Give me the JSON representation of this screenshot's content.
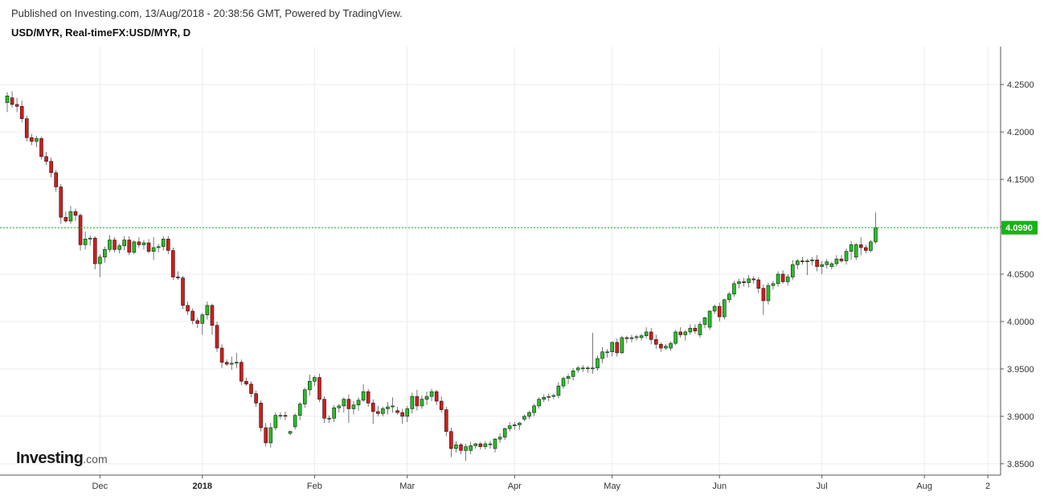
{
  "header": {
    "published": "Published on Investing.com, 13/Aug/2018 - 20:38:56 GMT, Powered by TradingView.",
    "symbol": "USD/MYR, Real-timeFX:USD/MYR, D"
  },
  "logo": {
    "main": "Investing",
    "sub": ".com"
  },
  "colors": {
    "up": "#22c322",
    "down": "#d71a1a",
    "last_line": "#19b219",
    "last_badge": "#19b219",
    "grid": "#ececec"
  },
  "chart_data": {
    "type": "candlestick",
    "symbol": "USD/MYR",
    "interval": "D",
    "ylim": [
      3.838,
      4.29
    ],
    "y_ticks": [
      "4.2500",
      "4.2000",
      "4.1500",
      "4.1000",
      "4.0500",
      "4.0000",
      "3.9500",
      "3.9000",
      "3.8500"
    ],
    "x_ticks": [
      {
        "label": "Dec",
        "index": 19,
        "bold": false
      },
      {
        "label": "2018",
        "index": 40,
        "bold": true
      },
      {
        "label": "Feb",
        "index": 63,
        "bold": false
      },
      {
        "label": "Mar",
        "index": 82,
        "bold": false
      },
      {
        "label": "Apr",
        "index": 104,
        "bold": false
      },
      {
        "label": "May",
        "index": 124,
        "bold": false
      },
      {
        "label": "Jun",
        "index": 146,
        "bold": false
      },
      {
        "label": "Jul",
        "index": 167,
        "bold": false
      },
      {
        "label": "Aug",
        "index": 188,
        "bold": false
      },
      {
        "label": "2",
        "index": 201,
        "bold": false
      }
    ],
    "last_price": "4.0990",
    "last_value": 4.099,
    "series": [
      [
        4.231,
        4.242,
        4.221,
        4.238
      ],
      [
        4.236,
        4.243,
        4.226,
        4.229
      ],
      [
        4.229,
        4.236,
        4.221,
        4.227
      ],
      [
        4.227,
        4.233,
        4.21,
        4.214
      ],
      [
        4.214,
        4.217,
        4.19,
        4.194
      ],
      [
        4.194,
        4.198,
        4.186,
        4.19
      ],
      [
        4.19,
        4.196,
        4.184,
        4.193
      ],
      [
        4.193,
        4.195,
        4.171,
        4.174
      ],
      [
        4.174,
        4.179,
        4.165,
        4.169
      ],
      [
        4.169,
        4.173,
        4.152,
        4.157
      ],
      [
        4.157,
        4.16,
        4.137,
        4.142
      ],
      [
        4.142,
        4.145,
        4.103,
        4.11
      ],
      [
        4.11,
        4.116,
        4.104,
        4.106
      ],
      [
        4.106,
        4.122,
        4.103,
        4.116
      ],
      [
        4.116,
        4.119,
        4.106,
        4.112
      ],
      [
        4.112,
        4.114,
        4.075,
        4.081
      ],
      [
        4.081,
        4.095,
        4.076,
        4.087
      ],
      [
        4.087,
        4.091,
        4.08,
        4.088
      ],
      [
        4.088,
        4.09,
        4.055,
        4.061
      ],
      [
        4.061,
        4.071,
        4.047,
        4.068
      ],
      [
        4.068,
        4.079,
        4.062,
        4.076
      ],
      [
        4.076,
        4.091,
        4.073,
        4.086
      ],
      [
        4.086,
        4.089,
        4.073,
        4.076
      ],
      [
        4.076,
        4.082,
        4.072,
        4.08
      ],
      [
        4.08,
        4.09,
        4.075,
        4.086
      ],
      [
        4.086,
        4.09,
        4.07,
        4.073
      ],
      [
        4.073,
        4.086,
        4.071,
        4.084
      ],
      [
        4.084,
        4.089,
        4.078,
        4.081
      ],
      [
        4.081,
        4.086,
        4.076,
        4.083
      ],
      [
        4.083,
        4.087,
        4.072,
        4.074
      ],
      [
        4.074,
        4.089,
        4.065,
        4.078
      ],
      [
        4.078,
        4.082,
        4.073,
        4.079
      ],
      [
        4.079,
        4.09,
        4.075,
        4.087
      ],
      [
        4.087,
        4.09,
        4.071,
        4.075
      ],
      [
        4.075,
        4.078,
        4.044,
        4.047
      ],
      [
        4.047,
        4.053,
        4.044,
        4.046
      ],
      [
        4.046,
        4.048,
        4.013,
        4.017
      ],
      [
        4.017,
        4.021,
        4.007,
        4.011
      ],
      [
        4.011,
        4.014,
        3.997,
        4.001
      ],
      [
        4.001,
        4.004,
        3.993,
        3.998
      ],
      [
        3.998,
        4.009,
        3.986,
        4.007
      ],
      [
        4.007,
        4.021,
        4.002,
        4.017
      ],
      [
        4.017,
        4.019,
        3.986,
        3.996
      ],
      [
        3.996,
        4.0,
        3.968,
        3.972
      ],
      [
        3.972,
        3.976,
        3.951,
        3.957
      ],
      [
        3.957,
        3.96,
        3.953,
        3.955
      ],
      [
        3.955,
        3.963,
        3.949,
        3.956
      ],
      [
        3.956,
        3.967,
        3.951,
        3.957
      ],
      [
        3.957,
        3.96,
        3.933,
        3.937
      ],
      [
        3.937,
        3.941,
        3.932,
        3.934
      ],
      [
        3.934,
        3.937,
        3.92,
        3.924
      ],
      [
        3.924,
        3.927,
        3.91,
        3.914
      ],
      [
        3.914,
        3.917,
        3.884,
        3.888
      ],
      [
        3.888,
        3.893,
        3.868,
        3.872
      ],
      [
        3.872,
        3.893,
        3.867,
        3.888
      ],
      [
        3.888,
        3.904,
        3.885,
        3.901
      ],
      [
        3.901,
        3.904,
        3.897,
        3.901
      ],
      [
        3.901,
        3.905,
        3.896,
        3.9
      ],
      [
        3.882,
        3.885,
        3.88,
        3.884
      ],
      [
        3.889,
        3.903,
        3.886,
        3.901
      ],
      [
        3.901,
        3.915,
        3.896,
        3.913
      ],
      [
        3.913,
        3.93,
        3.909,
        3.928
      ],
      [
        3.928,
        3.944,
        3.922,
        3.937
      ],
      [
        3.937,
        3.943,
        3.932,
        3.941
      ],
      [
        3.941,
        3.945,
        3.915,
        3.918
      ],
      [
        3.918,
        3.921,
        3.893,
        3.898
      ],
      [
        3.898,
        3.901,
        3.893,
        3.898
      ],
      [
        3.898,
        3.912,
        3.894,
        3.909
      ],
      [
        3.909,
        3.913,
        3.904,
        3.911
      ],
      [
        3.911,
        3.92,
        3.904,
        3.918
      ],
      [
        3.918,
        3.923,
        3.893,
        3.908
      ],
      [
        3.908,
        3.916,
        3.902,
        3.912
      ],
      [
        3.912,
        3.92,
        3.906,
        3.917
      ],
      [
        3.917,
        3.934,
        3.915,
        3.926
      ],
      [
        3.926,
        3.929,
        3.91,
        3.914
      ],
      [
        3.914,
        3.918,
        3.892,
        3.905
      ],
      [
        3.905,
        3.911,
        3.9,
        3.903
      ],
      [
        3.903,
        3.91,
        3.9,
        3.908
      ],
      [
        3.908,
        3.915,
        3.902,
        3.91
      ],
      [
        3.91,
        3.92,
        3.904,
        3.911
      ],
      [
        3.906,
        3.91,
        3.902,
        3.904
      ],
      [
        3.904,
        3.908,
        3.892,
        3.9
      ],
      [
        3.9,
        3.911,
        3.894,
        3.908
      ],
      [
        3.908,
        3.925,
        3.903,
        3.921
      ],
      [
        3.921,
        3.928,
        3.906,
        3.911
      ],
      [
        3.911,
        3.922,
        3.908,
        3.918
      ],
      [
        3.918,
        3.926,
        3.912,
        3.921
      ],
      [
        3.921,
        3.929,
        3.916,
        3.926
      ],
      [
        3.926,
        3.928,
        3.912,
        3.916
      ],
      [
        3.916,
        3.921,
        3.904,
        3.907
      ],
      [
        3.907,
        3.91,
        3.879,
        3.884
      ],
      [
        3.884,
        3.888,
        3.857,
        3.866
      ],
      [
        3.866,
        3.874,
        3.862,
        3.87
      ],
      [
        3.87,
        3.872,
        3.86,
        3.864
      ],
      [
        3.864,
        3.871,
        3.853,
        3.868
      ],
      [
        3.864,
        3.873,
        3.86,
        3.869
      ],
      [
        3.869,
        3.872,
        3.866,
        3.871
      ],
      [
        3.871,
        3.873,
        3.865,
        3.868
      ],
      [
        3.868,
        3.874,
        3.865,
        3.871
      ],
      [
        3.87,
        3.874,
        3.866,
        3.871
      ],
      [
        3.866,
        3.877,
        3.862,
        3.876
      ],
      [
        3.876,
        3.882,
        3.872,
        3.878
      ],
      [
        3.878,
        3.888,
        3.875,
        3.887
      ],
      [
        3.887,
        3.894,
        3.884,
        3.89
      ],
      [
        3.89,
        3.894,
        3.886,
        3.891
      ],
      [
        3.891,
        3.894,
        3.886,
        3.893
      ],
      [
        3.897,
        3.902,
        3.895,
        3.9
      ],
      [
        3.9,
        3.906,
        3.897,
        3.904
      ],
      [
        3.904,
        3.913,
        3.9,
        3.911
      ],
      [
        3.911,
        3.92,
        3.908,
        3.918
      ],
      [
        3.918,
        3.923,
        3.915,
        3.92
      ],
      [
        3.92,
        3.924,
        3.916,
        3.921
      ],
      [
        3.921,
        3.924,
        3.918,
        3.922
      ],
      [
        3.922,
        3.936,
        3.919,
        3.932
      ],
      [
        3.932,
        3.942,
        3.929,
        3.94
      ],
      [
        3.94,
        3.945,
        3.934,
        3.942
      ],
      [
        3.942,
        3.951,
        3.938,
        3.948
      ],
      [
        3.949,
        3.953,
        3.946,
        3.951
      ],
      [
        3.951,
        3.954,
        3.947,
        3.951
      ],
      [
        3.951,
        3.953,
        3.946,
        3.951
      ],
      [
        3.951,
        3.988,
        3.945,
        3.951
      ],
      [
        3.951,
        3.964,
        3.948,
        3.961
      ],
      [
        3.961,
        3.973,
        3.956,
        3.968
      ],
      [
        3.968,
        3.971,
        3.962,
        3.968
      ],
      [
        3.968,
        3.979,
        3.963,
        3.978
      ],
      [
        3.978,
        3.982,
        3.963,
        3.967
      ],
      [
        3.967,
        3.985,
        3.966,
        3.983
      ],
      [
        3.983,
        3.985,
        3.977,
        3.982
      ],
      [
        3.982,
        3.986,
        3.978,
        3.983
      ],
      [
        3.983,
        3.986,
        3.98,
        3.984
      ],
      [
        3.983,
        3.987,
        3.98,
        3.985
      ],
      [
        3.985,
        3.994,
        3.982,
        3.989
      ],
      [
        3.989,
        3.993,
        3.976,
        3.981
      ],
      [
        3.981,
        3.986,
        3.971,
        3.976
      ],
      [
        3.976,
        3.978,
        3.968,
        3.972
      ],
      [
        3.972,
        3.976,
        3.97,
        3.974
      ],
      [
        3.972,
        3.979,
        3.969,
        3.977
      ],
      [
        3.977,
        3.991,
        3.975,
        3.989
      ],
      [
        3.989,
        3.994,
        3.983,
        3.986
      ],
      [
        3.986,
        3.991,
        3.98,
        3.989
      ],
      [
        3.989,
        3.997,
        3.986,
        3.993
      ],
      [
        3.993,
        3.997,
        3.987,
        3.99
      ],
      [
        3.986,
        4.0,
        3.983,
        3.997
      ],
      [
        3.997,
        4.005,
        3.993,
        4.004
      ],
      [
        3.994,
        4.012,
        3.991,
        4.011
      ],
      [
        4.011,
        4.018,
        4.008,
        4.016
      ],
      [
        4.016,
        4.02,
        4.0,
        4.005
      ],
      [
        4.005,
        4.024,
        4.002,
        4.023
      ],
      [
        4.023,
        4.031,
        4.02,
        4.029
      ],
      [
        4.029,
        4.043,
        4.026,
        4.04
      ],
      [
        4.04,
        4.045,
        4.035,
        4.042
      ],
      [
        4.042,
        4.046,
        4.037,
        4.041
      ],
      [
        4.041,
        4.049,
        4.036,
        4.045
      ],
      [
        4.045,
        4.048,
        4.04,
        4.044
      ],
      [
        4.044,
        4.047,
        4.03,
        4.035
      ],
      [
        4.035,
        4.039,
        4.007,
        4.022
      ],
      [
        4.022,
        4.041,
        4.018,
        4.038
      ],
      [
        4.038,
        4.043,
        4.034,
        4.04
      ],
      [
        4.04,
        4.053,
        4.037,
        4.05
      ],
      [
        4.05,
        4.054,
        4.04,
        4.042
      ],
      [
        4.042,
        4.05,
        4.038,
        4.047
      ],
      [
        4.047,
        4.065,
        4.044,
        4.06
      ],
      [
        4.06,
        4.066,
        4.055,
        4.064
      ],
      [
        4.064,
        4.068,
        4.06,
        4.063
      ],
      [
        4.063,
        4.066,
        4.049,
        4.064
      ],
      [
        4.064,
        4.068,
        4.059,
        4.065
      ],
      [
        4.065,
        4.07,
        4.053,
        4.058
      ],
      [
        4.058,
        4.064,
        4.05,
        4.06
      ],
      [
        4.06,
        4.066,
        4.056,
        4.063
      ],
      [
        4.058,
        4.063,
        4.055,
        4.061
      ],
      [
        4.061,
        4.07,
        4.058,
        4.066
      ],
      [
        4.066,
        4.07,
        4.062,
        4.064
      ],
      [
        4.064,
        4.077,
        4.06,
        4.074
      ],
      [
        4.074,
        4.085,
        4.065,
        4.081
      ],
      [
        4.068,
        4.083,
        4.065,
        4.081
      ],
      [
        4.081,
        4.089,
        4.07,
        4.078
      ],
      [
        4.078,
        4.081,
        4.072,
        4.075
      ],
      [
        4.075,
        4.086,
        4.073,
        4.084
      ],
      [
        4.084,
        4.115,
        4.082,
        4.099
      ]
    ]
  }
}
